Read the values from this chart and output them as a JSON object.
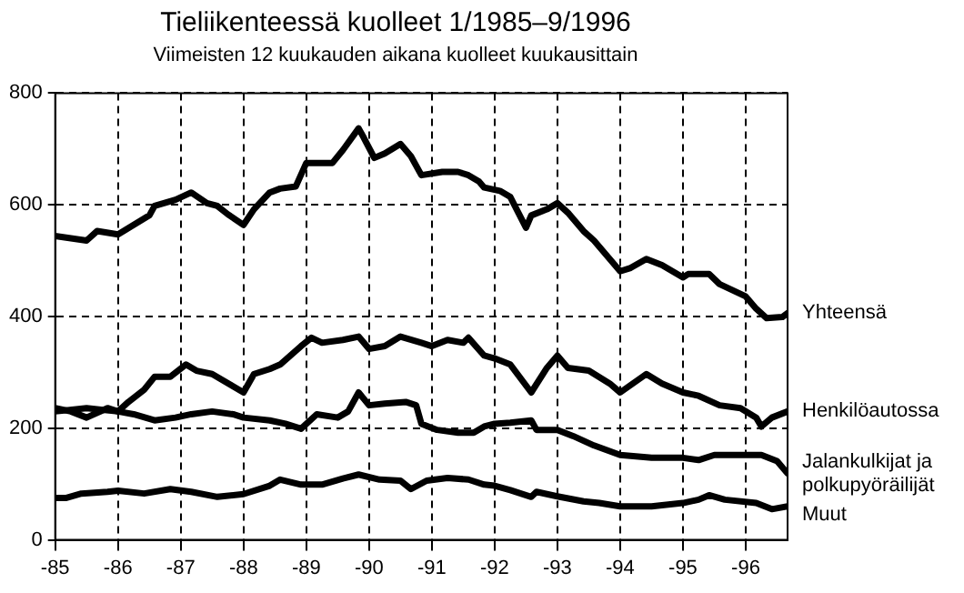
{
  "chart_data": {
    "type": "line",
    "title": "Tieliikenteessä kuolleet 1/1985–9/1996",
    "subtitle": "Viimeisten 12 kuukauden aikana kuolleet kuukausittain",
    "xlim": [
      "1985-01",
      "1996-09"
    ],
    "xticks": [
      {
        "value": "1985-01",
        "label": "-85"
      },
      {
        "value": "1986-01",
        "label": "-86"
      },
      {
        "value": "1987-01",
        "label": "-87"
      },
      {
        "value": "1988-01",
        "label": "-88"
      },
      {
        "value": "1989-01",
        "label": "-89"
      },
      {
        "value": "1990-01",
        "label": "-90"
      },
      {
        "value": "1991-01",
        "label": "-91"
      },
      {
        "value": "1992-01",
        "label": "-92"
      },
      {
        "value": "1993-01",
        "label": "-93"
      },
      {
        "value": "1994-01",
        "label": "-94"
      },
      {
        "value": "1995-01",
        "label": "-95"
      },
      {
        "value": "1996-01",
        "label": "-96"
      }
    ],
    "ylim": [
      0,
      800
    ],
    "yticks": [
      0,
      200,
      400,
      600,
      800
    ],
    "grid": true,
    "legend": false,
    "marker": "none",
    "line_style": "solid",
    "series": [
      {
        "name": "Yhteensä",
        "color": "#000000",
        "x": [
          "1985-01",
          "1985-07",
          "1985-09",
          "1986-01",
          "1986-04",
          "1986-07",
          "1986-08",
          "1986-12",
          "1987-03",
          "1987-06",
          "1987-08",
          "1987-10",
          "1988-01",
          "1988-03",
          "1988-06",
          "1988-08",
          "1988-11",
          "1989-01",
          "1989-03",
          "1989-06",
          "1989-08",
          "1989-11",
          "1989-12",
          "1990-02",
          "1990-04",
          "1990-07",
          "1990-09",
          "1990-11",
          "1991-03",
          "1991-06",
          "1991-08",
          "1991-10",
          "1991-11",
          "1992-02",
          "1992-04",
          "1992-07",
          "1992-08",
          "1992-11",
          "1993-01",
          "1993-03",
          "1993-06",
          "1993-08",
          "1993-11",
          "1994-01",
          "1994-03",
          "1994-06",
          "1994-09",
          "1995-01",
          "1995-02",
          "1995-06",
          "1995-08",
          "1996-01",
          "1996-03",
          "1996-05",
          "1996-08",
          "1996-09"
        ],
        "values": [
          544,
          536,
          553,
          547,
          564,
          581,
          598,
          609,
          622,
          603,
          598,
          583,
          564,
          592,
          622,
          629,
          633,
          675,
          675,
          675,
          698,
          737,
          720,
          684,
          692,
          709,
          687,
          653,
          659,
          659,
          653,
          642,
          631,
          625,
          614,
          559,
          581,
          592,
          603,
          586,
          553,
          536,
          503,
          481,
          487,
          503,
          492,
          470,
          476,
          476,
          458,
          436,
          414,
          397,
          399,
          406
        ]
      },
      {
        "name": "Henkilöautossa",
        "color": "#000000",
        "x": [
          "1985-01",
          "1985-04",
          "1985-07",
          "1985-11",
          "1986-01",
          "1986-03",
          "1986-06",
          "1986-08",
          "1986-11",
          "1987-02",
          "1987-04",
          "1987-07",
          "1987-11",
          "1988-01",
          "1988-03",
          "1988-06",
          "1988-08",
          "1988-12",
          "1989-02",
          "1989-04",
          "1989-08",
          "1989-11",
          "1990-01",
          "1990-04",
          "1990-07",
          "1990-11",
          "1991-01",
          "1991-04",
          "1991-07",
          "1991-08",
          "1991-11",
          "1992-01",
          "1992-04",
          "1992-08",
          "1992-11",
          "1993-01",
          "1993-03",
          "1993-07",
          "1993-11",
          "1994-01",
          "1994-06",
          "1994-09",
          "1995-01",
          "1995-04",
          "1995-08",
          "1995-12",
          "1996-03",
          "1996-04",
          "1996-06",
          "1996-09"
        ],
        "values": [
          236,
          230,
          219,
          236,
          230,
          247,
          269,
          292,
          292,
          314,
          303,
          297,
          275,
          264,
          297,
          306,
          314,
          347,
          362,
          353,
          358,
          364,
          342,
          347,
          364,
          353,
          347,
          358,
          353,
          362,
          330,
          325,
          314,
          264,
          308,
          330,
          308,
          303,
          280,
          264,
          297,
          280,
          264,
          258,
          241,
          236,
          219,
          203,
          219,
          230
        ]
      },
      {
        "name": "Jalankulkijat ja polkupyöräilijät",
        "color": "#000000",
        "x": [
          "1985-01",
          "1985-07",
          "1986-01",
          "1986-04",
          "1986-08",
          "1986-12",
          "1987-03",
          "1987-07",
          "1987-11",
          "1988-01",
          "1988-06",
          "1988-09",
          "1988-12",
          "1989-03",
          "1989-07",
          "1989-09",
          "1989-11",
          "1990-01",
          "1990-04",
          "1990-08",
          "1990-10",
          "1990-11",
          "1991-02",
          "1991-06",
          "1991-09",
          "1991-11",
          "1992-01",
          "1992-04",
          "1992-08",
          "1992-09",
          "1993-01",
          "1993-04",
          "1993-08",
          "1994-01",
          "1994-07",
          "1995-01",
          "1995-04",
          "1995-07",
          "1995-12",
          "1996-04",
          "1996-07",
          "1996-09"
        ],
        "values": [
          230,
          236,
          230,
          225,
          214,
          219,
          225,
          230,
          225,
          219,
          214,
          208,
          199,
          225,
          219,
          230,
          264,
          241,
          244,
          247,
          241,
          208,
          197,
          192,
          192,
          203,
          208,
          210,
          214,
          197,
          197,
          186,
          169,
          152,
          147,
          147,
          143,
          152,
          152,
          152,
          141,
          119
        ]
      },
      {
        "name": "Muut",
        "color": "#000000",
        "x": [
          "1985-01",
          "1985-03",
          "1985-06",
          "1985-11",
          "1986-01",
          "1986-06",
          "1986-11",
          "1987-03",
          "1987-08",
          "1988-01",
          "1988-06",
          "1988-08",
          "1988-12",
          "1989-04",
          "1989-08",
          "1989-11",
          "1990-03",
          "1990-07",
          "1990-09",
          "1990-12",
          "1991-04",
          "1991-08",
          "1991-11",
          "1992-01",
          "1992-04",
          "1992-08",
          "1992-09",
          "1993-01",
          "1993-06",
          "1993-09",
          "1994-01",
          "1994-07",
          "1995-01",
          "1995-04",
          "1995-06",
          "1995-09",
          "1996-03",
          "1996-06",
          "1996-09"
        ],
        "values": [
          75,
          75,
          83,
          86,
          88,
          83,
          91,
          86,
          77,
          82,
          97,
          108,
          99,
          99,
          110,
          117,
          108,
          106,
          91,
          106,
          111,
          108,
          99,
          97,
          89,
          77,
          86,
          78,
          69,
          66,
          60,
          60,
          66,
          72,
          80,
          72,
          66,
          55,
          60
        ]
      }
    ]
  }
}
